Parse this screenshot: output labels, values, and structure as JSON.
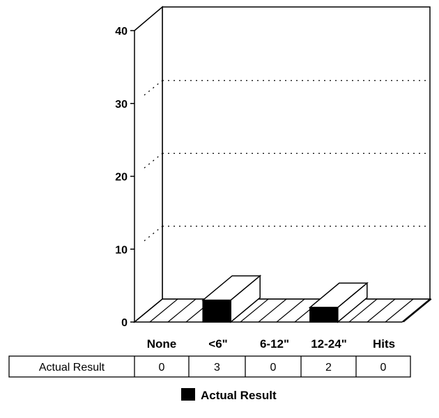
{
  "chart_data": {
    "type": "bar",
    "categories": [
      "None",
      "<6\"",
      "6-12\"",
      "12-24\"",
      "Hits"
    ],
    "series": [
      {
        "name": "Actual Result",
        "values": [
          0,
          3,
          0,
          2,
          0
        ],
        "color": "#000000"
      }
    ],
    "ylim": [
      0,
      40
    ],
    "yticks": [
      0,
      10,
      20,
      30,
      40
    ],
    "grid": true,
    "legend": "bottom",
    "data_table": {
      "row_label": "Actual Result",
      "values": [
        "0",
        "3",
        "0",
        "2",
        "0"
      ]
    }
  }
}
